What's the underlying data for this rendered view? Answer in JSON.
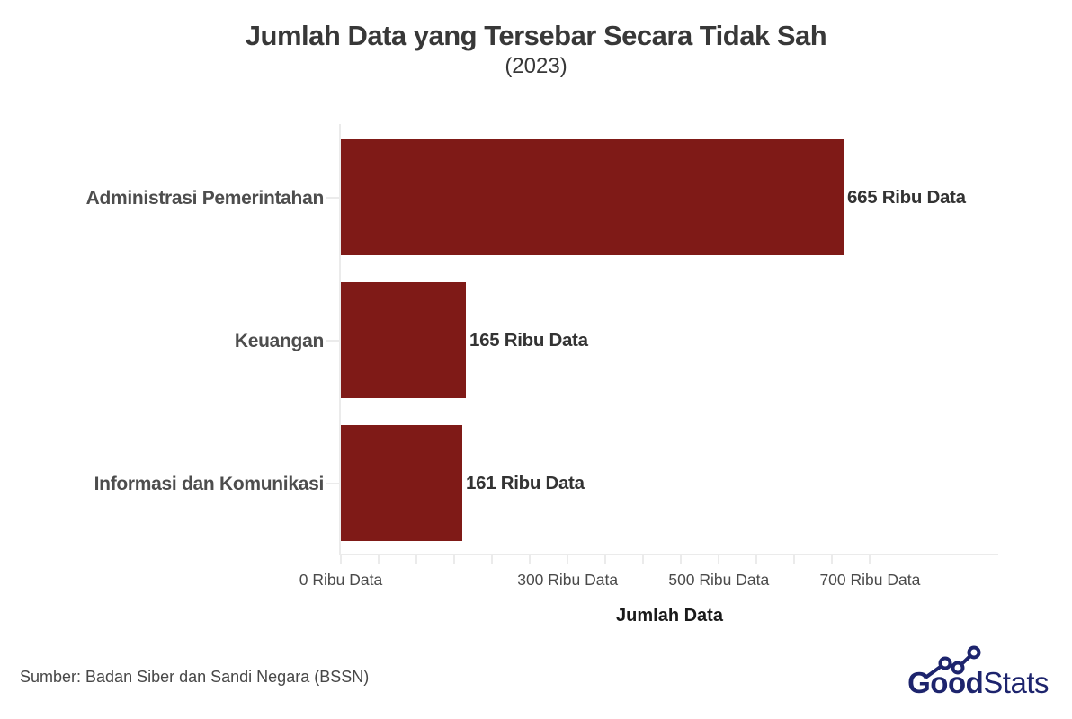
{
  "title": "Jumlah Data yang Tersebar Secara Tidak Sah",
  "subtitle": "(2023)",
  "source": "Sumber: Badan Siber dan Sandi Negara (BSSN)",
  "logo": {
    "bold": "Good",
    "light": "Stats"
  },
  "colors": {
    "bar": "#7f1a17",
    "axis": "#ebebeb",
    "title_text": "#383838",
    "category_label": "#4d4d4d",
    "value_label": "#333333",
    "tick_label": "#4a4a4a",
    "axis_title": "#1a1a1a",
    "source_text": "#474747",
    "logo_navy": "#1d246d"
  },
  "chart_data": {
    "type": "bar",
    "orientation": "horizontal",
    "title": "Jumlah Data yang Tersebar Secara Tidak Sah",
    "subtitle": "(2023)",
    "categories": [
      "Administrasi Pemerintahan",
      "Keuangan",
      "Informasi dan Komunikasi"
    ],
    "values": [
      665,
      165,
      161
    ],
    "value_labels": [
      "665 Ribu Data",
      "165 Ribu Data",
      "161 Ribu Data"
    ],
    "unit": "Ribu Data",
    "xlabel": "Jumlah Data",
    "ylabel": "",
    "xlim": [
      0,
      868
    ],
    "x_tick_values": [
      0,
      300,
      500,
      700
    ],
    "x_tick_labels": [
      "0 Ribu Data",
      "300 Ribu Data",
      "500 Ribu Data",
      "700 Ribu Data"
    ],
    "minor_tick_step": 50,
    "minor_tick_max": 700,
    "grid": false,
    "legend": false
  }
}
